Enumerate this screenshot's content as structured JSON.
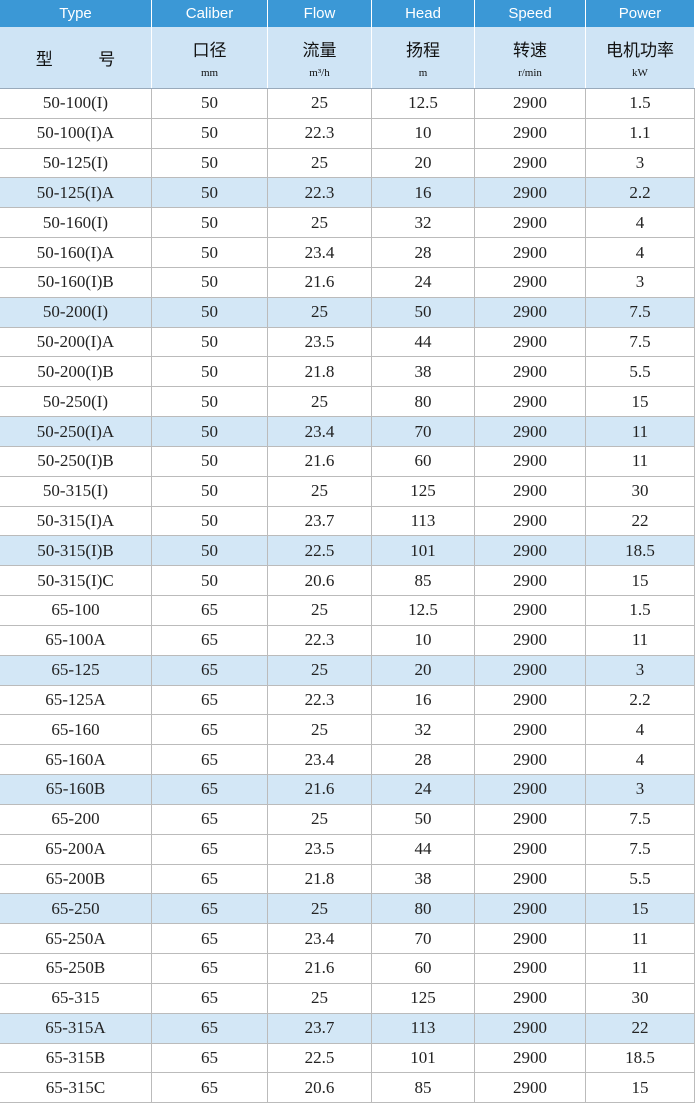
{
  "table": {
    "header_en": [
      "Type",
      "Caliber",
      "Flow",
      "Head",
      "Speed",
      "Power"
    ],
    "header_cn": [
      {
        "name": "型 号"
      },
      {
        "name": "口径",
        "unit": "mm"
      },
      {
        "name": "流量",
        "unit": "m³/h"
      },
      {
        "name": "扬程",
        "unit": "m"
      },
      {
        "name": "转速",
        "unit": "r/min"
      },
      {
        "name": "电机功率",
        "unit": "kW"
      }
    ],
    "rows": [
      [
        "50-100(I)",
        "50",
        "25",
        "12.5",
        "2900",
        "1.5"
      ],
      [
        "50-100(I)A",
        "50",
        "22.3",
        "10",
        "2900",
        "1.1"
      ],
      [
        "50-125(I)",
        "50",
        "25",
        "20",
        "2900",
        "3"
      ],
      [
        "50-125(I)A",
        "50",
        "22.3",
        "16",
        "2900",
        "2.2"
      ],
      [
        "50-160(I)",
        "50",
        "25",
        "32",
        "2900",
        "4"
      ],
      [
        "50-160(I)A",
        "50",
        "23.4",
        "28",
        "2900",
        "4"
      ],
      [
        "50-160(I)B",
        "50",
        "21.6",
        "24",
        "2900",
        "3"
      ],
      [
        "50-200(I)",
        "50",
        "25",
        "50",
        "2900",
        "7.5"
      ],
      [
        "50-200(I)A",
        "50",
        "23.5",
        "44",
        "2900",
        "7.5"
      ],
      [
        "50-200(I)B",
        "50",
        "21.8",
        "38",
        "2900",
        "5.5"
      ],
      [
        "50-250(I)",
        "50",
        "25",
        "80",
        "2900",
        "15"
      ],
      [
        "50-250(I)A",
        "50",
        "23.4",
        "70",
        "2900",
        "11"
      ],
      [
        "50-250(I)B",
        "50",
        "21.6",
        "60",
        "2900",
        "11"
      ],
      [
        "50-315(I)",
        "50",
        "25",
        "125",
        "2900",
        "30"
      ],
      [
        "50-315(I)A",
        "50",
        "23.7",
        "113",
        "2900",
        "22"
      ],
      [
        "50-315(I)B",
        "50",
        "22.5",
        "101",
        "2900",
        "18.5"
      ],
      [
        "50-315(I)C",
        "50",
        "20.6",
        "85",
        "2900",
        "15"
      ],
      [
        "65-100",
        "65",
        "25",
        "12.5",
        "2900",
        "1.5"
      ],
      [
        "65-100A",
        "65",
        "22.3",
        "10",
        "2900",
        "11"
      ],
      [
        "65-125",
        "65",
        "25",
        "20",
        "2900",
        "3"
      ],
      [
        "65-125A",
        "65",
        "22.3",
        "16",
        "2900",
        "2.2"
      ],
      [
        "65-160",
        "65",
        "25",
        "32",
        "2900",
        "4"
      ],
      [
        "65-160A",
        "65",
        "23.4",
        "28",
        "2900",
        "4"
      ],
      [
        "65-160B",
        "65",
        "21.6",
        "24",
        "2900",
        "3"
      ],
      [
        "65-200",
        "65",
        "25",
        "50",
        "2900",
        "7.5"
      ],
      [
        "65-200A",
        "65",
        "23.5",
        "44",
        "2900",
        "7.5"
      ],
      [
        "65-200B",
        "65",
        "21.8",
        "38",
        "2900",
        "5.5"
      ],
      [
        "65-250",
        "65",
        "25",
        "80",
        "2900",
        "15"
      ],
      [
        "65-250A",
        "65",
        "23.4",
        "70",
        "2900",
        "11"
      ],
      [
        "65-250B",
        "65",
        "21.6",
        "60",
        "2900",
        "11"
      ],
      [
        "65-315",
        "65",
        "25",
        "125",
        "2900",
        "30"
      ],
      [
        "65-315A",
        "65",
        "23.7",
        "113",
        "2900",
        "22"
      ],
      [
        "65-315B",
        "65",
        "22.5",
        "101",
        "2900",
        "18.5"
      ],
      [
        "65-315C",
        "65",
        "20.6",
        "85",
        "2900",
        "15"
      ]
    ]
  }
}
